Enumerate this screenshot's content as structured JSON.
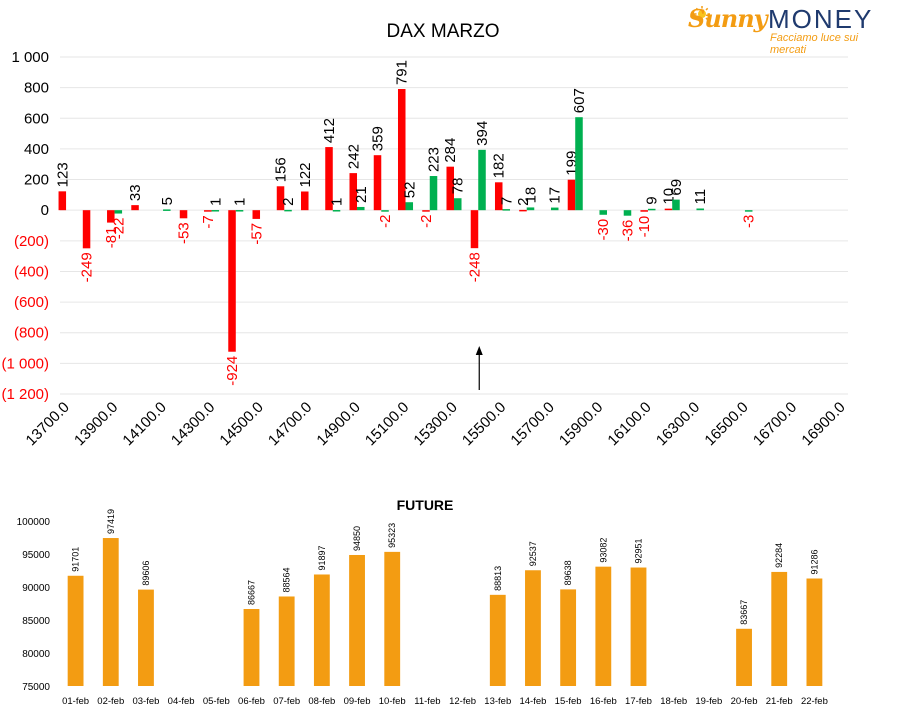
{
  "logo": {
    "brand_part1": "Sunny",
    "brand_part2": "MONEY",
    "tagline": "Facciamo luce sui mercati"
  },
  "chart_data": [
    {
      "type": "bar",
      "title": "DAX MARZO",
      "ylim": [
        -1200,
        1000
      ],
      "y_ticks": [
        "1 000",
        "800",
        "600",
        "400",
        "200",
        "0",
        "(200)",
        "(400)",
        "(600)",
        "(800)",
        "(1 000)",
        "(1 200)"
      ],
      "y_tick_values": [
        1000,
        800,
        600,
        400,
        200,
        0,
        -200,
        -400,
        -600,
        -800,
        -1000,
        -1200
      ],
      "x_tick_labels": [
        "13700.0",
        "13900.0",
        "14100.0",
        "14300.0",
        "14500.0",
        "14700.0",
        "14900.0",
        "15100.0",
        "15300.0",
        "15500.0",
        "15700.0",
        "15900.0",
        "16100.0",
        "16300.0",
        "16500.0",
        "16700.0",
        "16900.0"
      ],
      "categories": [
        "13700",
        "13750",
        "13800",
        "13850",
        "13900",
        "13950",
        "14000",
        "14050",
        "14100",
        "14150",
        "14200",
        "14250",
        "14300",
        "14350",
        "14400",
        "14450",
        "14500",
        "14550",
        "14600",
        "14650",
        "14700",
        "14750",
        "14800",
        "14850",
        "14900",
        "14950",
        "15000",
        "15050",
        "15100",
        "15150",
        "15200",
        "15250",
        "15300",
        "15350",
        "15400",
        "15450",
        "15500",
        "15550",
        "15600",
        "15650",
        "15700",
        "15750",
        "15800",
        "15850",
        "15900",
        "15950",
        "16000",
        "16050",
        "16100",
        "16150",
        "16200",
        "16250",
        "16300",
        "16350",
        "16400",
        "16450",
        "16500",
        "16550",
        "16600",
        "16650",
        "16700",
        "16750",
        "16800",
        "16850",
        "16900"
      ],
      "series": [
        {
          "color": "#ff0000",
          "values": [
            123,
            0,
            -249,
            0,
            -81,
            0,
            33,
            0,
            0,
            0,
            -53,
            0,
            -7,
            0,
            -924,
            0,
            -57,
            0,
            156,
            0,
            122,
            0,
            412,
            0,
            242,
            0,
            359,
            0,
            791,
            0,
            -2,
            0,
            284,
            0,
            -248,
            0,
            182,
            0,
            2,
            0,
            0,
            0,
            199,
            0,
            0,
            0,
            0,
            0,
            -10,
            0,
            10,
            0,
            0,
            0,
            0,
            0,
            0,
            0,
            0,
            0,
            0,
            0,
            0,
            0,
            0
          ],
          "labels": [
            "123",
            "",
            "-249",
            "",
            "-81",
            "",
            "33",
            "",
            "",
            "",
            "-53",
            "",
            "-7",
            "",
            "-924",
            "",
            "-57",
            "",
            "156",
            "",
            "122",
            "",
            "412",
            "",
            "242",
            "",
            "359",
            "",
            "791",
            "",
            "-2",
            "",
            "284",
            "",
            "-248",
            "",
            "182",
            "",
            "2",
            "",
            "",
            "",
            "199",
            "",
            "",
            "",
            "",
            "",
            "-10",
            "",
            "10",
            "",
            "",
            "",
            "",
            "",
            "",
            "",
            "",
            "",
            "",
            "",
            "",
            "",
            ""
          ]
        },
        {
          "color": "#00b050",
          "values": [
            0,
            0,
            0,
            0,
            -22,
            0,
            0,
            0,
            5,
            0,
            0,
            0,
            1,
            0,
            1,
            0,
            0,
            0,
            2,
            0,
            0,
            0,
            1,
            0,
            21,
            0,
            -2,
            0,
            52,
            0,
            223,
            0,
            78,
            0,
            394,
            0,
            7,
            0,
            18,
            0,
            17,
            0,
            607,
            0,
            -30,
            0,
            -36,
            0,
            9,
            0,
            69,
            0,
            11,
            0,
            0,
            0,
            -3,
            0,
            0,
            0,
            0,
            0,
            0,
            0,
            0
          ],
          "labels": [
            "",
            "",
            "",
            "",
            "-22",
            "",
            "",
            "",
            "5",
            "",
            "",
            "",
            "1",
            "",
            "1",
            "",
            "",
            "",
            "2",
            "",
            "",
            "",
            "1",
            "",
            "21",
            "",
            "-2",
            "",
            "52",
            "",
            "223",
            "",
            "78",
            "",
            "394",
            "",
            "7",
            "",
            "18",
            "",
            "17",
            "",
            "607",
            "",
            "-30",
            "",
            "-36",
            "",
            "9",
            "",
            "69",
            "",
            "11",
            "",
            "",
            "",
            "-3",
            "",
            "",
            "",
            "",
            "",
            "",
            "",
            ""
          ]
        }
      ],
      "annotation": "arrow-up at 15400",
      "grid": true,
      "legend": "none"
    },
    {
      "type": "bar",
      "title": "FUTURE",
      "ylim": [
        75000,
        100000
      ],
      "y_ticks": [
        "100000",
        "95000",
        "90000",
        "85000",
        "80000",
        "75000"
      ],
      "y_tick_values": [
        100000,
        95000,
        90000,
        85000,
        80000,
        75000
      ],
      "categories": [
        "01-feb",
        "02-feb",
        "03-feb",
        "04-feb",
        "05-feb",
        "06-feb",
        "07-feb",
        "08-feb",
        "09-feb",
        "10-feb",
        "11-feb",
        "12-feb",
        "13-feb",
        "14-feb",
        "15-feb",
        "16-feb",
        "17-feb",
        "18-feb",
        "19-feb",
        "20-feb",
        "21-feb",
        "22-feb"
      ],
      "values": [
        91701,
        97419,
        89606,
        null,
        null,
        86667,
        88564,
        91897,
        94850,
        95323,
        null,
        null,
        88813,
        92537,
        89638,
        93082,
        92951,
        null,
        null,
        83667,
        92284,
        91286
      ],
      "labels": [
        "91701",
        "97419",
        "89606",
        "",
        "",
        "86667",
        "88564",
        "91897",
        "94850",
        "95323",
        "",
        "",
        "88813",
        "92537",
        "89638",
        "93082",
        "92951",
        "",
        "",
        "83667",
        "92284",
        "91286"
      ],
      "color": "#f39c12",
      "grid": false,
      "legend": "none"
    }
  ]
}
